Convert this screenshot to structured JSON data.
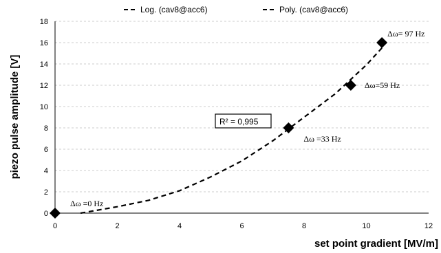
{
  "chart_data": {
    "type": "scatter",
    "xlabel": "set point gradient [MV/m]",
    "ylabel": "piezo pulse amplitude [V]",
    "xlim": [
      0,
      12
    ],
    "ylim": [
      0,
      18
    ],
    "xticks": [
      "0",
      "2",
      "4",
      "6",
      "8",
      "10",
      "12"
    ],
    "yticks": [
      "0",
      "2",
      "4",
      "6",
      "8",
      "10",
      "12",
      "14",
      "16",
      "18"
    ],
    "grid": "horizontal dashed",
    "legend_position": "top",
    "legend": [
      {
        "label": "Log. (cav8@acc6)",
        "style": "dashed"
      },
      {
        "label": "Poly. (cav8@acc6)",
        "style": "dashed"
      }
    ],
    "points": [
      {
        "x": 0,
        "y": 0,
        "label": "Δω =0 Hz"
      },
      {
        "x": 7.5,
        "y": 8,
        "label": "Δω =33 Hz"
      },
      {
        "x": 9.5,
        "y": 12,
        "label": "Δω=59 Hz"
      },
      {
        "x": 10.5,
        "y": 16,
        "label": "Δω= 97 Hz"
      }
    ],
    "trendline": {
      "type": "polynomial",
      "curve": [
        [
          0.82,
          0
        ],
        [
          2,
          0.6
        ],
        [
          3,
          1.2
        ],
        [
          4,
          2.1
        ],
        [
          5,
          3.4
        ],
        [
          6,
          4.9
        ],
        [
          7,
          6.8
        ],
        [
          8,
          9.0
        ],
        [
          9,
          11.2
        ],
        [
          10,
          13.9
        ],
        [
          10.5,
          15.5
        ]
      ]
    },
    "r_squared_label": "R² = 0,995",
    "colors": {
      "marker": "#000000",
      "grid": "#bfbfbf",
      "line": "#000000"
    }
  }
}
